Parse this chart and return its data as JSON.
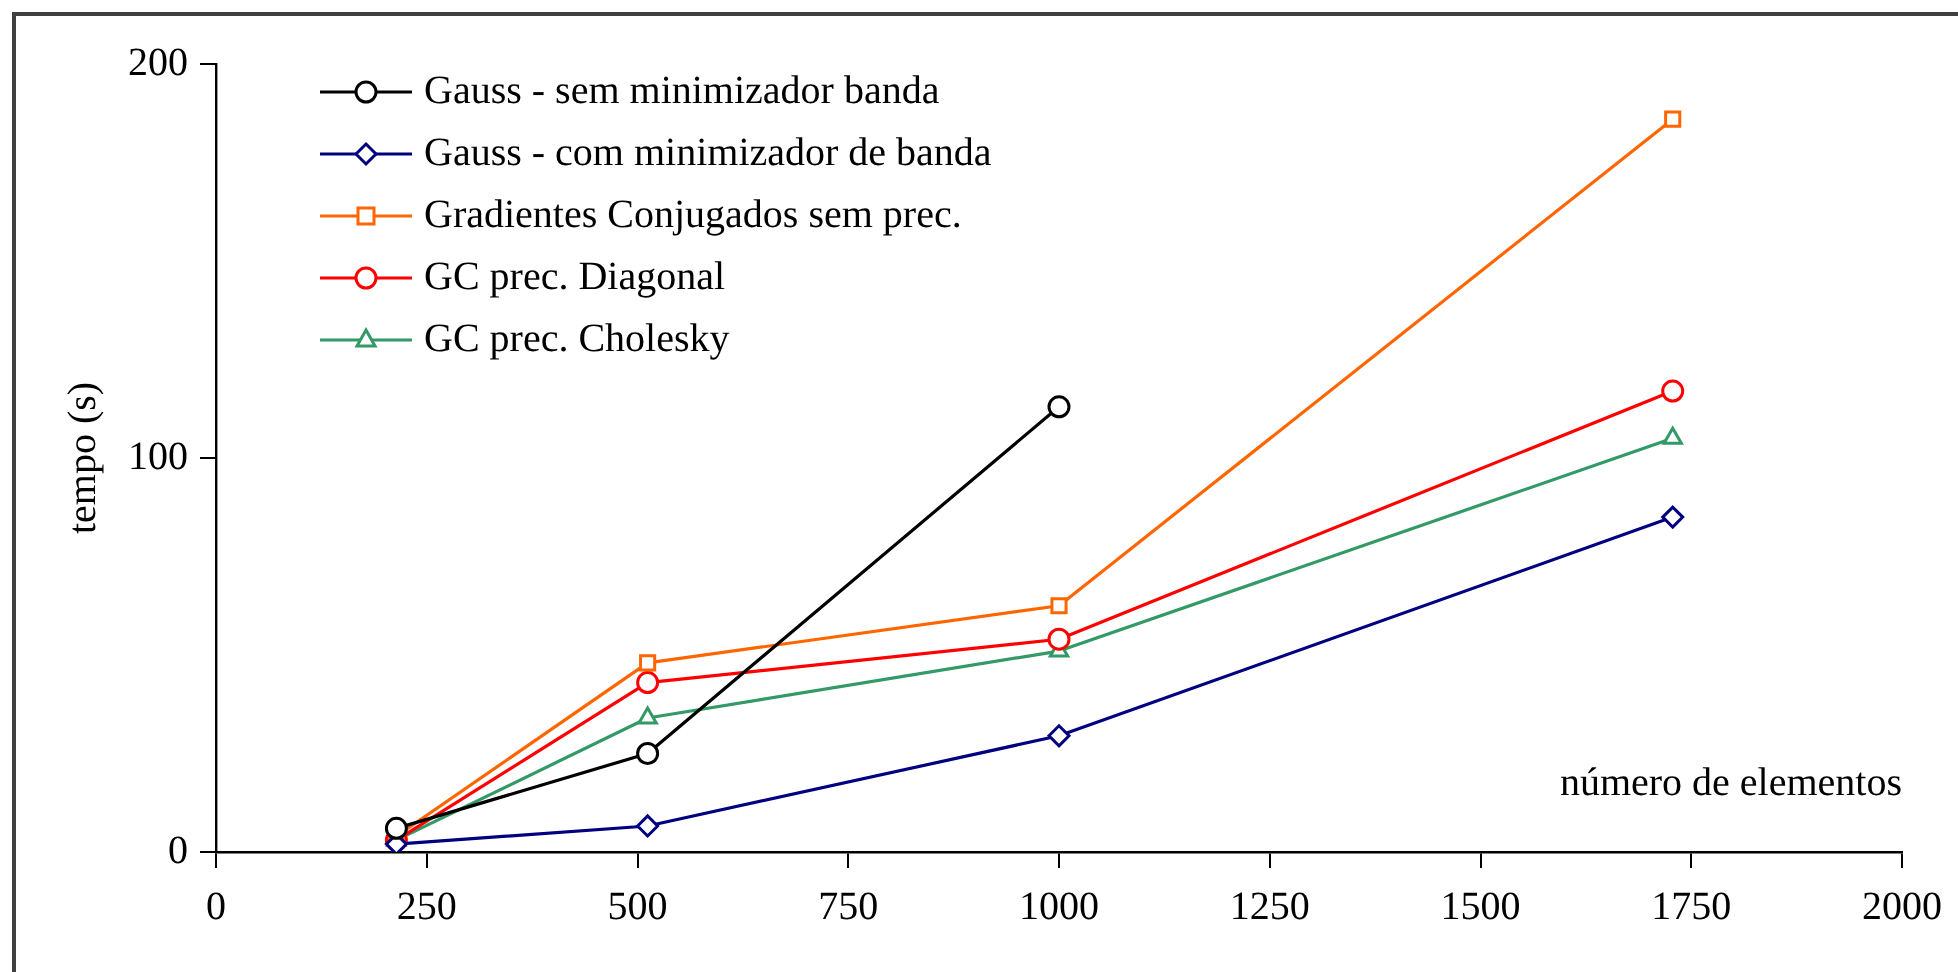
{
  "chart_data": {
    "type": "line",
    "xlabel": "número de elementos",
    "ylabel": "tempo (s)",
    "x": [
      214,
      512,
      1000,
      1728
    ],
    "series": [
      {
        "name": "Gauss - sem minimizador banda",
        "color": "#000000",
        "marker": "circle",
        "values": [
          6,
          25,
          113,
          null
        ]
      },
      {
        "name": "Gauss - com minimizador de banda",
        "color": "#000080",
        "marker": "diamond",
        "values": [
          2,
          6.6,
          29.5,
          85
        ]
      },
      {
        "name": "Gradientes Conjugados sem prec.",
        "color": "#ff6600",
        "marker": "square",
        "values": [
          4,
          48,
          62.5,
          186
        ]
      },
      {
        "name": "GC prec. Diagonal",
        "color": "#ff0000",
        "marker": "circle",
        "values": [
          3,
          43,
          54,
          117
        ]
      },
      {
        "name": "GC prec. Cholesky",
        "color": "#339966",
        "marker": "triangle",
        "values": [
          3,
          34,
          51,
          105
        ]
      }
    ],
    "xlim": [
      0,
      2000
    ],
    "xticks": [
      0,
      250,
      500,
      750,
      1000,
      1250,
      1500,
      1750,
      2000
    ],
    "ylim": [
      0,
      200
    ],
    "yticks": [
      0,
      100,
      200
    ],
    "grid": false,
    "legend": "top left",
    "line_style": "solid"
  }
}
